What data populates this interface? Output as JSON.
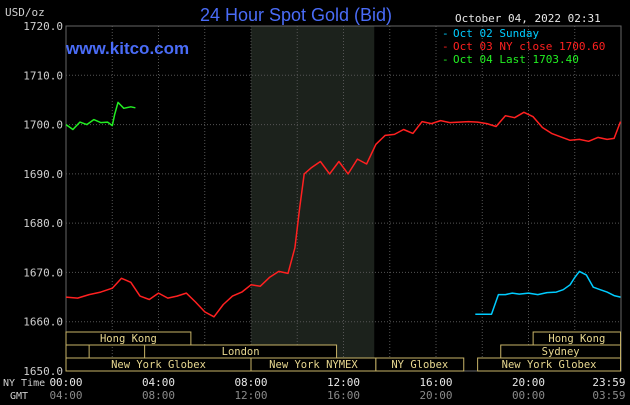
{
  "chart_data": {
    "type": "line",
    "title": "24 Hour Spot Gold (Bid)",
    "ylabel": "USD/oz",
    "watermark": "www.kitco.com",
    "timestamp": "October 04, 2022 02:31",
    "ylim": [
      1650,
      1720
    ],
    "y_ticks": [
      "1720.0",
      "1710.0",
      "1700.0",
      "1690.0",
      "1680.0",
      "1670.0",
      "1660.0",
      "1650.0"
    ],
    "x_range_hours": [
      0,
      24
    ],
    "x_ticks_ny": [
      "00:00",
      "04:00",
      "08:00",
      "12:00",
      "16:00",
      "20:00",
      "23:59"
    ],
    "x_ticks_gmt": [
      "04:00",
      "08:00",
      "12:00",
      "16:00",
      "20:00",
      "00:00",
      "03:59"
    ],
    "x_row_labels": [
      "NY Time",
      "GMT"
    ],
    "colors": {
      "background": "#000000",
      "grid": "#555555",
      "title": "#4a6cf7",
      "axis_text": "#cfcfcf",
      "panel": "#1c221c",
      "session_fill": "#383828",
      "session_border": "#c8b468"
    },
    "legend": [
      {
        "marker": "-",
        "label": "Oct 02 Sunday",
        "color": "#00ccff"
      },
      {
        "marker": "-",
        "label": "Oct 03 NY close 1700.60",
        "color": "#ff2020"
      },
      {
        "marker": "-",
        "label": "Oct 04 Last 1703.40",
        "color": "#22ee22"
      }
    ],
    "highlight_hours": [
      8.0,
      13.33
    ],
    "series": [
      {
        "color": "#00ccff",
        "x": [
          17.7,
          18.1,
          18.4,
          18.7,
          19.0,
          19.3,
          19.6,
          20.0,
          20.4,
          20.8,
          21.2,
          21.5,
          21.8,
          22.0,
          22.2,
          22.5,
          22.8,
          23.1,
          23.4,
          23.7,
          23.98
        ],
        "y": [
          1661.5,
          1661.5,
          1661.5,
          1665.5,
          1665.5,
          1665.8,
          1665.6,
          1665.8,
          1665.5,
          1665.9,
          1666.0,
          1666.5,
          1667.5,
          1669.0,
          1670.2,
          1669.5,
          1667.0,
          1666.5,
          1666.0,
          1665.3,
          1665.0
        ]
      },
      {
        "color": "#ff2020",
        "x": [
          0.0,
          0.5,
          1.0,
          1.5,
          2.0,
          2.4,
          2.8,
          3.2,
          3.6,
          4.0,
          4.4,
          4.8,
          5.2,
          5.6,
          6.0,
          6.4,
          6.8,
          7.2,
          7.6,
          8.0,
          8.4,
          8.8,
          9.2,
          9.6,
          9.9,
          10.1,
          10.3,
          10.6,
          11.0,
          11.4,
          11.8,
          12.2,
          12.6,
          13.0,
          13.4,
          13.8,
          14.2,
          14.6,
          15.0,
          15.4,
          15.8,
          16.2,
          16.6,
          17.0,
          17.4,
          17.8,
          18.2,
          18.6,
          19.0,
          19.4,
          19.8,
          20.2,
          20.6,
          21.0,
          21.4,
          21.8,
          22.2,
          22.6,
          23.0,
          23.4,
          23.7,
          23.98
        ],
        "y": [
          1665.0,
          1664.8,
          1665.5,
          1666.0,
          1666.8,
          1668.8,
          1668.0,
          1665.2,
          1664.5,
          1665.8,
          1664.8,
          1665.2,
          1665.8,
          1664.0,
          1662.0,
          1661.0,
          1663.5,
          1665.2,
          1666.0,
          1667.5,
          1667.2,
          1669.0,
          1670.2,
          1669.8,
          1675.0,
          1683.0,
          1690.0,
          1691.2,
          1692.5,
          1690.0,
          1692.5,
          1690.0,
          1693.0,
          1692.0,
          1696.0,
          1697.8,
          1698.0,
          1699.0,
          1698.2,
          1700.6,
          1700.2,
          1700.8,
          1700.4,
          1700.5,
          1700.6,
          1700.5,
          1700.2,
          1699.6,
          1701.8,
          1701.4,
          1702.5,
          1701.6,
          1699.4,
          1698.2,
          1697.5,
          1696.8,
          1697.0,
          1696.6,
          1697.4,
          1697.0,
          1697.2,
          1700.6
        ]
      },
      {
        "color": "#22ee22",
        "x": [
          0.0,
          0.3,
          0.6,
          0.9,
          1.2,
          1.5,
          1.8,
          2.0,
          2.1,
          2.25,
          2.5,
          2.8,
          3.0
        ],
        "y": [
          1700.0,
          1699.0,
          1700.5,
          1700.0,
          1701.0,
          1700.4,
          1700.5,
          1699.8,
          1702.0,
          1704.5,
          1703.3,
          1703.6,
          1703.4
        ]
      }
    ],
    "sessions": [
      {
        "label": "Hong Kong",
        "start_hour": 0.0,
        "end_hour": 5.4,
        "row": 1
      },
      {
        "label": "",
        "start_hour": 0.0,
        "end_hour": 1.0,
        "row": 2
      },
      {
        "label": "London",
        "start_hour": 3.4,
        "end_hour": 11.7,
        "row": 2
      },
      {
        "label": "New York Globex",
        "start_hour": 0.0,
        "end_hour": 8.0,
        "row": 3
      },
      {
        "label": "New York NYMEX",
        "start_hour": 8.0,
        "end_hour": 13.4,
        "row": 3
      },
      {
        "label": "NY Globex",
        "start_hour": 13.4,
        "end_hour": 17.2,
        "row": 3
      },
      {
        "label": "Hong Kong",
        "start_hour": 20.2,
        "end_hour": 23.98,
        "row": 1
      },
      {
        "label": "Sydney",
        "start_hour": 18.8,
        "end_hour": 23.98,
        "row": 2
      },
      {
        "label": "New York Globex",
        "start_hour": 17.8,
        "end_hour": 23.98,
        "row": 3
      }
    ]
  }
}
